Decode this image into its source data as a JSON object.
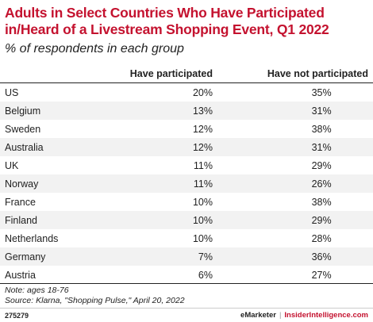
{
  "chart_data": {
    "type": "table",
    "title": "Adults in Select Countries Who Have Participated in/Heard of a Livestream Shopping Event, Q1 2022",
    "subtitle": "% of respondents in each group",
    "columns": [
      "",
      "Have participated",
      "Have not participated"
    ],
    "rows": [
      {
        "country": "US",
        "participated": "20%",
        "not_participated": "35%"
      },
      {
        "country": "Belgium",
        "participated": "13%",
        "not_participated": "31%"
      },
      {
        "country": "Sweden",
        "participated": "12%",
        "not_participated": "38%"
      },
      {
        "country": "Australia",
        "participated": "12%",
        "not_participated": "31%"
      },
      {
        "country": "UK",
        "participated": "11%",
        "not_participated": "29%"
      },
      {
        "country": "Norway",
        "participated": "11%",
        "not_participated": "26%"
      },
      {
        "country": "France",
        "participated": "10%",
        "not_participated": "38%"
      },
      {
        "country": "Finland",
        "participated": "10%",
        "not_participated": "29%"
      },
      {
        "country": "Netherlands",
        "participated": "10%",
        "not_participated": "28%"
      },
      {
        "country": "Germany",
        "participated": "7%",
        "not_participated": "36%"
      },
      {
        "country": "Austria",
        "participated": "6%",
        "not_participated": "27%"
      }
    ],
    "note": "Note: ages 18-76",
    "source": "Source: Klarna, \"Shopping Pulse,\" April 20, 2022"
  },
  "footer": {
    "chart_id": "275279",
    "brand_emarketer": "eMarketer",
    "brand_separator": "|",
    "brand_insider": "InsiderIntelligence.com"
  },
  "colors": {
    "title": "#c4122f",
    "stripe": "#f2f2f2"
  }
}
